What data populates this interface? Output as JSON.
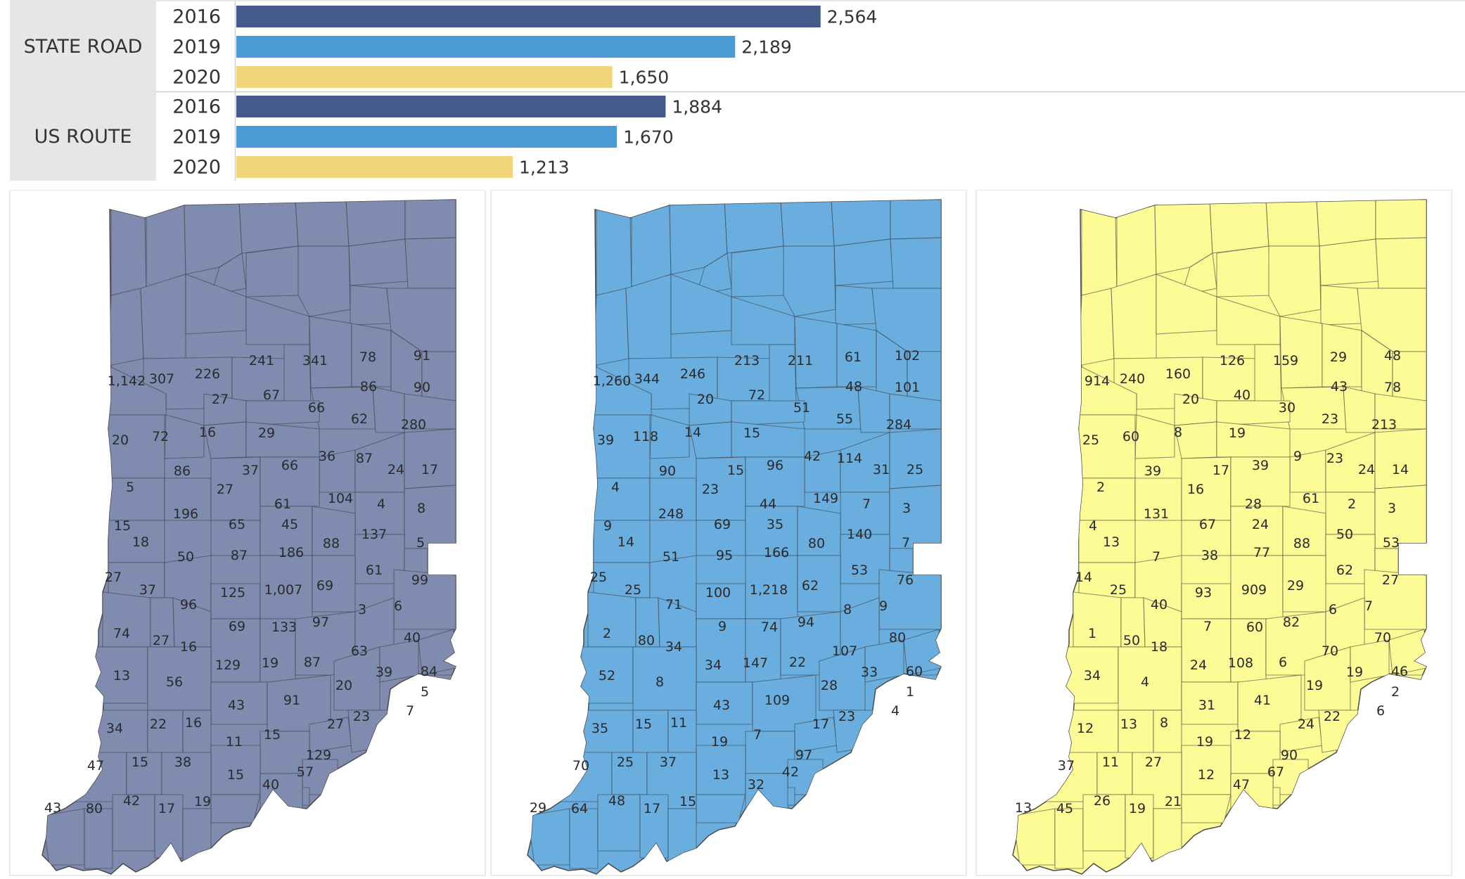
{
  "chart_data": [
    {
      "type": "bar",
      "orientation": "horizontal",
      "groups": [
        {
          "name": "STATE ROAD",
          "bars": [
            {
              "year": "2016",
              "value": 2564,
              "label": "2,564"
            },
            {
              "year": "2019",
              "value": 2189,
              "label": "2,189"
            },
            {
              "year": "2020",
              "value": 1650,
              "label": "1,650"
            }
          ]
        },
        {
          "name": "US ROUTE",
          "bars": [
            {
              "year": "2016",
              "value": 1884,
              "label": "1,884"
            },
            {
              "year": "2019",
              "value": 1670,
              "label": "1,670"
            },
            {
              "year": "2020",
              "value": 1213,
              "label": "1,213"
            }
          ]
        }
      ],
      "xlim": [
        0,
        4000
      ],
      "colors": {
        "2016": "#445a8a",
        "2019": "#4a9ad4",
        "2020": "#f2d57a"
      },
      "group_label_background": "#e6e6e6",
      "grid": false
    },
    {
      "type": "choropleth-map",
      "region": "Indiana counties",
      "fill": "#7f8cb0",
      "counts": [
        "1,142",
        "307",
        "226",
        "241",
        "341",
        "78",
        "91",
        "27",
        "67",
        "86",
        "90",
        "66",
        "62",
        "280",
        "20",
        "72",
        "16",
        "29",
        "36",
        "87",
        "24",
        "17",
        "86",
        "37",
        "66",
        "5",
        "27",
        "104",
        "4",
        "8",
        "61",
        "196",
        "65",
        "45",
        "15",
        "18",
        "88",
        "137",
        "5",
        "50",
        "87",
        "186",
        "61",
        "99",
        "27",
        "37",
        "125",
        "1,007",
        "69",
        "96",
        "3",
        "6",
        "74",
        "27",
        "16",
        "69",
        "133",
        "97",
        "40",
        "129",
        "19",
        "87",
        "63",
        "13",
        "56",
        "20",
        "39",
        "84",
        "5",
        "43",
        "91",
        "7",
        "34",
        "22",
        "16",
        "27",
        "23",
        "11",
        "15",
        "47",
        "15",
        "38",
        "129",
        "57",
        "15",
        "40",
        "43",
        "80",
        "42",
        "17",
        "19"
      ]
    },
    {
      "type": "choropleth-map",
      "region": "Indiana counties",
      "fill": "#6aaedf",
      "counts": [
        "1,260",
        "344",
        "246",
        "213",
        "211",
        "61",
        "102",
        "20",
        "72",
        "48",
        "101",
        "51",
        "55",
        "284",
        "39",
        "118",
        "14",
        "15",
        "42",
        "114",
        "31",
        "25",
        "90",
        "15",
        "96",
        "4",
        "23",
        "149",
        "7",
        "3",
        "44",
        "248",
        "69",
        "35",
        "9",
        "14",
        "80",
        "140",
        "7",
        "51",
        "95",
        "166",
        "53",
        "76",
        "25",
        "25",
        "100",
        "1,218",
        "62",
        "71",
        "8",
        "9",
        "2",
        "80",
        "34",
        "9",
        "74",
        "94",
        "80",
        "34",
        "147",
        "22",
        "107",
        "52",
        "8",
        "28",
        "33",
        "60",
        "1",
        "43",
        "109",
        "4",
        "35",
        "15",
        "11",
        "17",
        "23",
        "19",
        "7",
        "70",
        "25",
        "37",
        "97",
        "42",
        "13",
        "32",
        "29",
        "64",
        "48",
        "17",
        "15"
      ]
    },
    {
      "type": "choropleth-map",
      "region": "Indiana counties",
      "fill": "#fdfb95",
      "counts": [
        "914",
        "240",
        "160",
        "126",
        "159",
        "29",
        "48",
        "20",
        "40",
        "43",
        "78",
        "30",
        "23",
        "213",
        "25",
        "60",
        "8",
        "19",
        "9",
        "23",
        "24",
        "14",
        "39",
        "17",
        "39",
        "2",
        "16",
        "61",
        "2",
        "3",
        "28",
        "131",
        "67",
        "24",
        "4",
        "13",
        "88",
        "50",
        "53",
        "7",
        "38",
        "77",
        "62",
        "27",
        "14",
        "25",
        "93",
        "909",
        "29",
        "40",
        "6",
        "7",
        "1",
        "50",
        "18",
        "7",
        "60",
        "82",
        "70",
        "24",
        "108",
        "6",
        "70",
        "34",
        "4",
        "19",
        "19",
        "46",
        "2",
        "31",
        "41",
        "6",
        "12",
        "13",
        "8",
        "24",
        "22",
        "19",
        "12",
        "37",
        "11",
        "27",
        "90",
        "67",
        "12",
        "47",
        "13",
        "45",
        "26",
        "19",
        "21"
      ]
    }
  ]
}
